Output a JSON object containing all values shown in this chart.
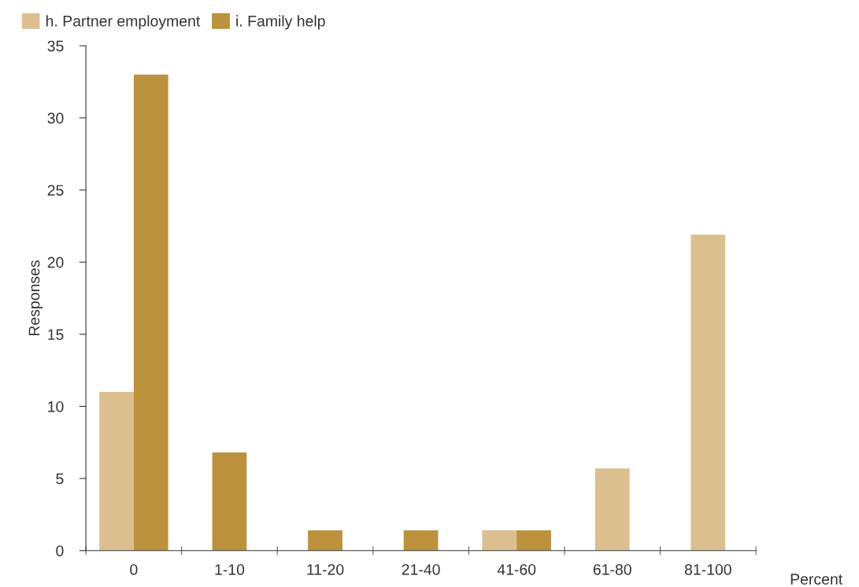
{
  "chart_data": {
    "type": "bar",
    "xlabel": "Percent",
    "ylabel": "Responses",
    "categories": [
      "0",
      "1-10",
      "11-20",
      "21-40",
      "41-60",
      "61-80",
      "81-100"
    ],
    "series": [
      {
        "name": "h. Partner employment",
        "color": "#dcbf8f",
        "values": [
          11,
          null,
          null,
          null,
          1.4,
          5.7,
          21.9
        ]
      },
      {
        "name": "i. Family help",
        "color": "#bc923e",
        "values": [
          33,
          6.8,
          1.4,
          1.4,
          1.4,
          null,
          null
        ]
      }
    ],
    "ylim": [
      0,
      35
    ],
    "yticks": [
      0,
      5,
      10,
      15,
      20,
      25,
      30,
      35
    ],
    "grid": false,
    "legend": "top left"
  }
}
